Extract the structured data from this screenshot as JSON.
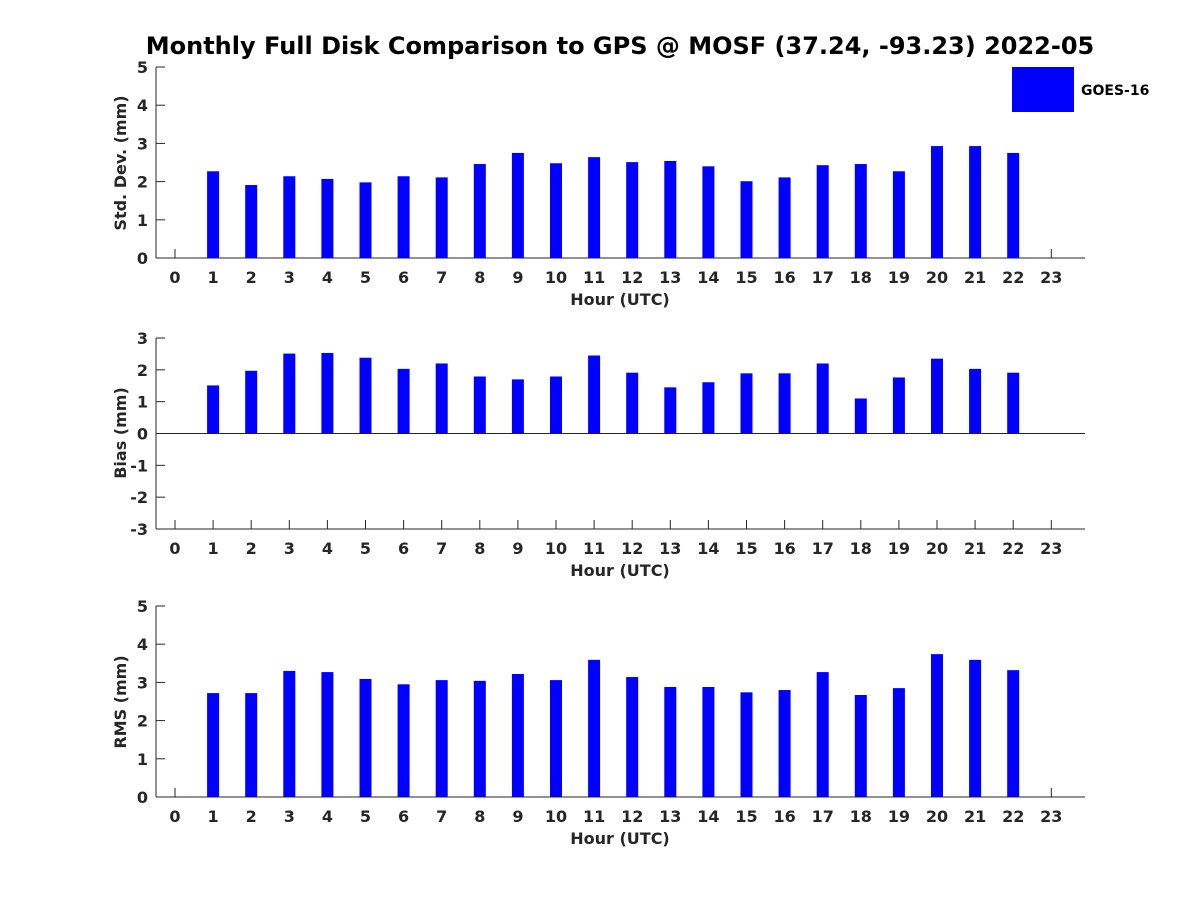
{
  "title": "Monthly Full Disk Comparison to GPS @ MOSF (37.24, -93.23) 2022-05",
  "legend": {
    "label": "GOES-16",
    "color": "#0000ff"
  },
  "chart_data": [
    {
      "type": "bar",
      "name": "std",
      "ylabel": "Std. Dev. (mm)",
      "xlabel": "Hour (UTC)",
      "ylim": [
        0,
        5
      ],
      "yticks": [
        0,
        1,
        2,
        3,
        4,
        5
      ],
      "categories": [
        "0",
        "1",
        "2",
        "3",
        "4",
        "5",
        "6",
        "7",
        "8",
        "9",
        "10",
        "11",
        "12",
        "13",
        "14",
        "15",
        "16",
        "17",
        "18",
        "19",
        "20",
        "21",
        "22",
        "23"
      ],
      "series": [
        {
          "name": "GOES-16",
          "color": "#0000ff",
          "values": [
            null,
            2.27,
            1.91,
            2.14,
            2.07,
            1.98,
            2.14,
            2.11,
            2.46,
            2.75,
            2.48,
            2.64,
            2.51,
            2.54,
            2.4,
            2.01,
            2.11,
            2.43,
            2.46,
            2.27,
            2.93,
            2.93,
            2.75,
            null
          ]
        }
      ]
    },
    {
      "type": "bar",
      "name": "bias",
      "ylabel": "Bias (mm)",
      "xlabel": "Hour (UTC)",
      "ylim": [
        -3,
        3
      ],
      "yticks": [
        -3,
        -2,
        -1,
        0,
        1,
        2,
        3
      ],
      "zero_line": true,
      "categories": [
        "0",
        "1",
        "2",
        "3",
        "4",
        "5",
        "6",
        "7",
        "8",
        "9",
        "10",
        "11",
        "12",
        "13",
        "14",
        "15",
        "16",
        "17",
        "18",
        "19",
        "20",
        "21",
        "22",
        "23"
      ],
      "series": [
        {
          "name": "GOES-16",
          "color": "#0000ff",
          "values": [
            null,
            1.51,
            1.97,
            2.51,
            2.53,
            2.38,
            2.03,
            2.2,
            1.79,
            1.7,
            1.79,
            2.45,
            1.91,
            1.45,
            1.61,
            1.89,
            1.89,
            2.2,
            1.1,
            1.76,
            2.35,
            2.03,
            1.91,
            null
          ]
        }
      ]
    },
    {
      "type": "bar",
      "name": "rms",
      "ylabel": "RMS (mm)",
      "xlabel": "Hour (UTC)",
      "ylim": [
        0,
        5
      ],
      "yticks": [
        0,
        1,
        2,
        3,
        4,
        5
      ],
      "categories": [
        "0",
        "1",
        "2",
        "3",
        "4",
        "5",
        "6",
        "7",
        "8",
        "9",
        "10",
        "11",
        "12",
        "13",
        "14",
        "15",
        "16",
        "17",
        "18",
        "19",
        "20",
        "21",
        "22",
        "23"
      ],
      "series": [
        {
          "name": "GOES-16",
          "color": "#0000ff",
          "values": [
            null,
            2.72,
            2.72,
            3.3,
            3.27,
            3.09,
            2.95,
            3.06,
            3.04,
            3.22,
            3.06,
            3.59,
            3.14,
            2.88,
            2.88,
            2.74,
            2.8,
            3.27,
            2.67,
            2.85,
            3.74,
            3.59,
            3.32,
            null
          ]
        }
      ]
    }
  ]
}
